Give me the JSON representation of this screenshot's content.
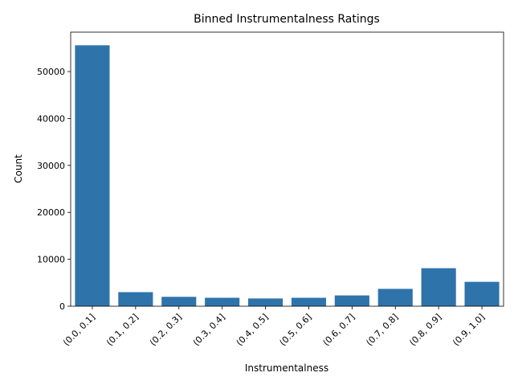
{
  "chart_data": {
    "type": "bar",
    "title": "Binned Instrumentalness Ratings",
    "xlabel": "Instrumentalness",
    "ylabel": "Count",
    "categories": [
      "(0.0, 0.1]",
      "(0.1, 0.2]",
      "(0.2, 0.3]",
      "(0.3, 0.4]",
      "(0.4, 0.5]",
      "(0.5, 0.6]",
      "(0.6, 0.7]",
      "(0.7, 0.8]",
      "(0.8, 0.9]",
      "(0.9, 1.0]"
    ],
    "values": [
      55600,
      3000,
      2000,
      1800,
      1650,
      1800,
      2300,
      3700,
      8100,
      5200
    ],
    "ylim": [
      0,
      58400
    ],
    "yticks": [
      0,
      10000,
      20000,
      30000,
      40000,
      50000
    ],
    "bar_color": "#2f73ab",
    "grid": false,
    "legend": "none"
  }
}
